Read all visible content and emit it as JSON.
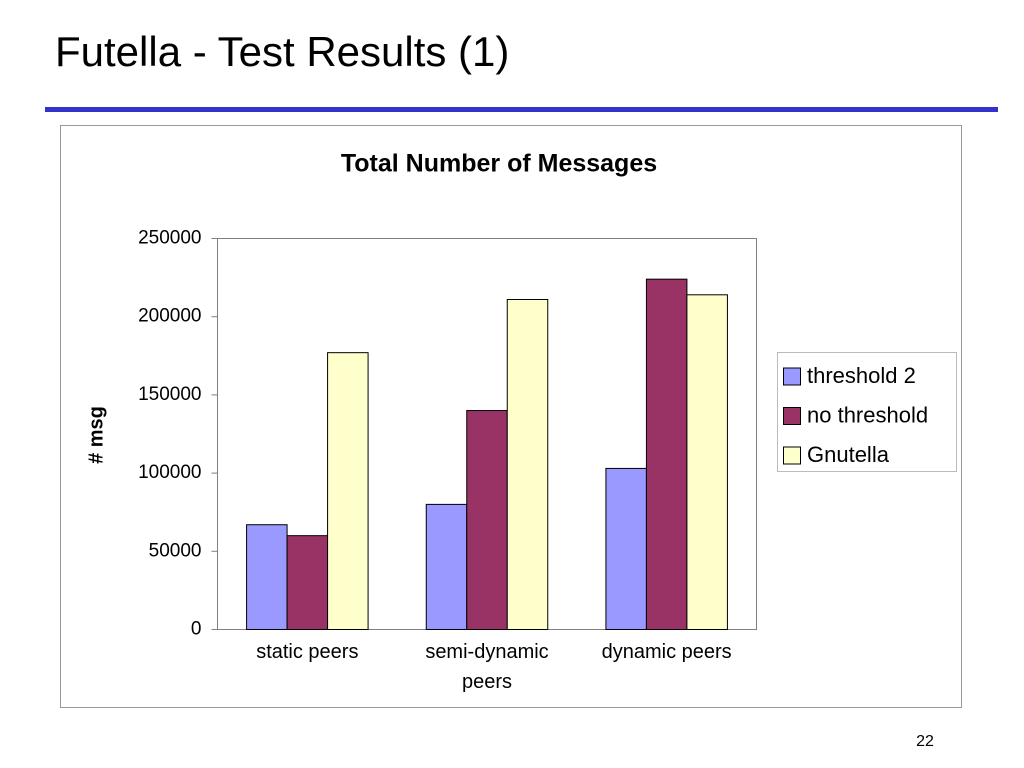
{
  "slide_title": "Futella - Test Results (1)",
  "page_number": "22",
  "chart_data": {
    "type": "bar",
    "title": "Total Number of Messages",
    "y_label": "# msg",
    "categories": [
      "static peers",
      "semi-dynamic peers",
      "dynamic peers"
    ],
    "series": [
      {
        "name": "threshold 2",
        "color": "#9999ff",
        "values": [
          67000,
          80000,
          103000
        ]
      },
      {
        "name": "no threshold",
        "color": "#993366",
        "values": [
          60000,
          140000,
          224000
        ]
      },
      {
        "name": "Gnutella",
        "color": "#ffffcc",
        "values": [
          177000,
          211000,
          214000
        ]
      }
    ],
    "ylim": [
      0,
      250000
    ],
    "yticks": [
      0,
      50000,
      100000,
      150000,
      200000,
      250000
    ],
    "grid": false,
    "legend": "right"
  }
}
